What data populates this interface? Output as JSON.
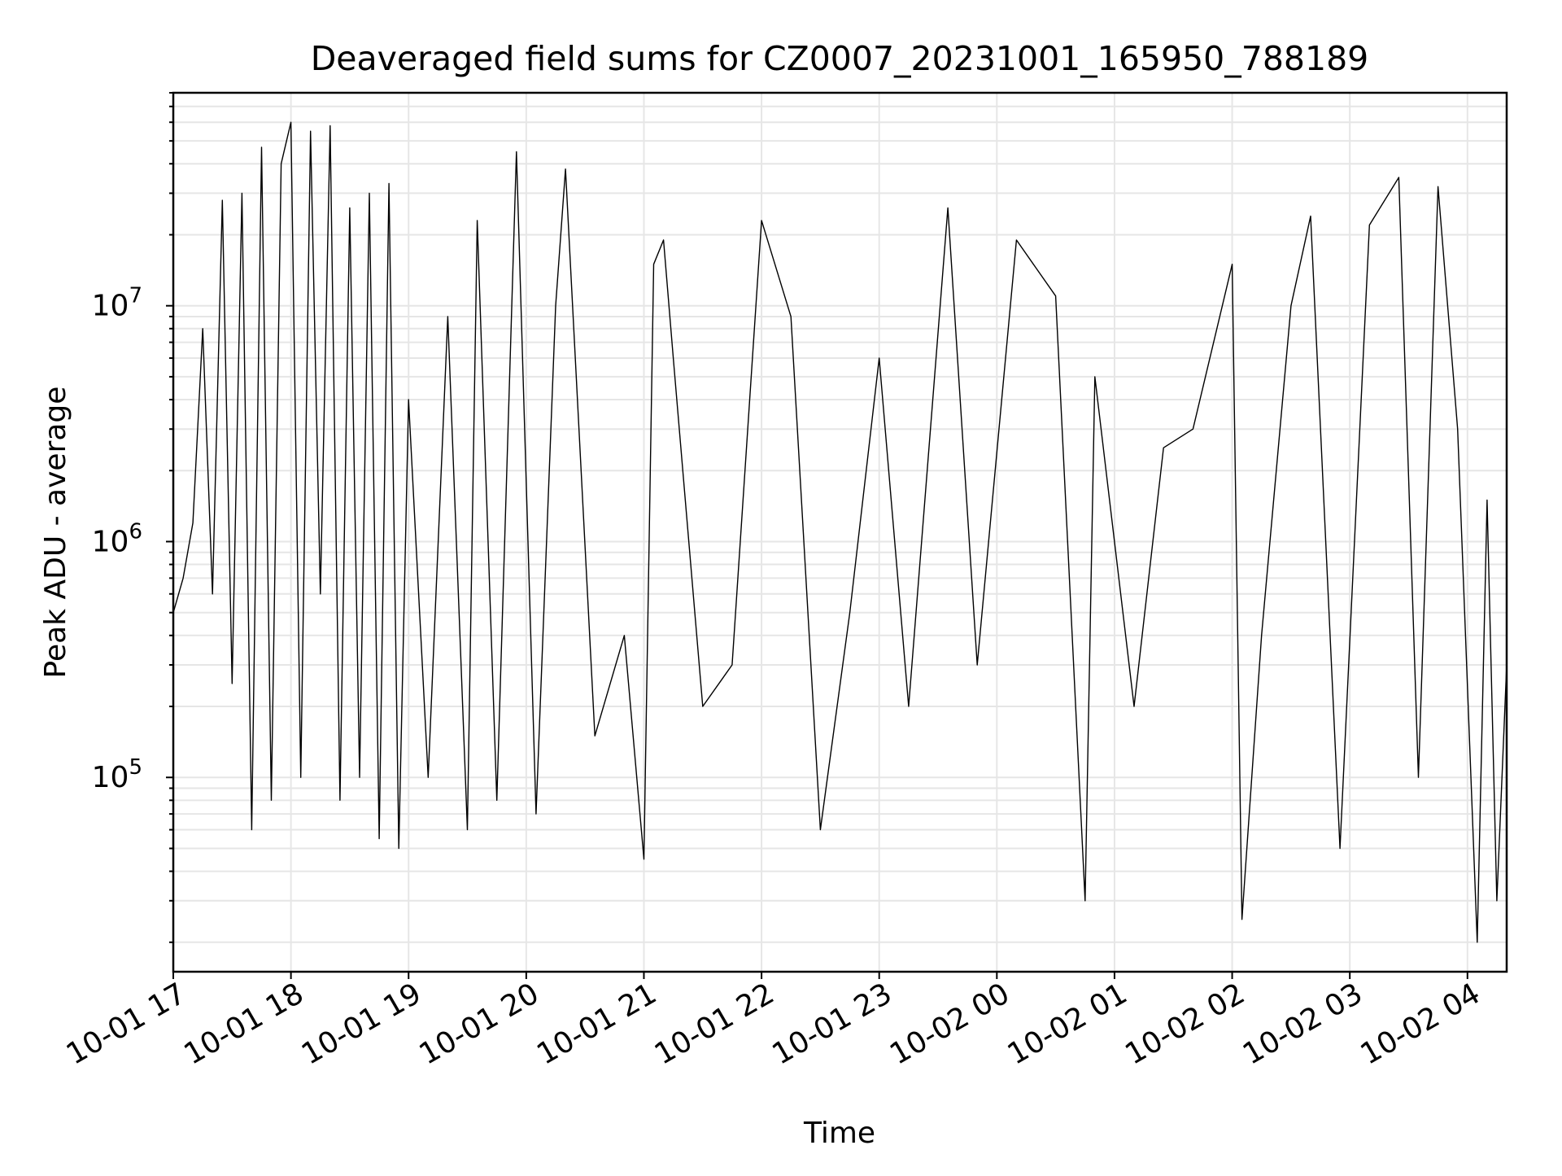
{
  "chart_data": {
    "type": "line",
    "title": "Deaveraged field sums for CZ0007_20231001_165950_788189",
    "xlabel": "Time",
    "ylabel": "Peak ADU - average",
    "yscale": "log",
    "xlim": [
      "2023-10-01 17:00",
      "2023-10-02 04:20"
    ],
    "ylim": [
      15000,
      80000000
    ],
    "grid": "on (major and minor)",
    "x_ticks": [
      {
        "value": "2023-10-01 17:00",
        "label": "10-01 17"
      },
      {
        "value": "2023-10-01 18:00",
        "label": "10-01 18"
      },
      {
        "value": "2023-10-01 19:00",
        "label": "10-01 19"
      },
      {
        "value": "2023-10-01 20:00",
        "label": "10-01 20"
      },
      {
        "value": "2023-10-01 21:00",
        "label": "10-01 21"
      },
      {
        "value": "2023-10-01 22:00",
        "label": "10-01 22"
      },
      {
        "value": "2023-10-01 23:00",
        "label": "10-01 23"
      },
      {
        "value": "2023-10-02 00:00",
        "label": "10-02 00"
      },
      {
        "value": "2023-10-02 01:00",
        "label": "10-02 01"
      },
      {
        "value": "2023-10-02 02:00",
        "label": "10-02 02"
      },
      {
        "value": "2023-10-02 03:00",
        "label": "10-02 03"
      },
      {
        "value": "2023-10-02 04:00",
        "label": "10-02 04"
      }
    ],
    "y_ticks": [
      {
        "value": 100000,
        "base": "10",
        "exp": "5"
      },
      {
        "value": 1000000,
        "base": "10",
        "exp": "6"
      },
      {
        "value": 10000000,
        "base": "10",
        "exp": "7"
      }
    ],
    "series": [
      {
        "color": "#000000",
        "points": [
          [
            "2023-10-01 17:00",
            500000
          ],
          [
            "2023-10-01 17:05",
            700000
          ],
          [
            "2023-10-01 17:10",
            1200000
          ],
          [
            "2023-10-01 17:15",
            8000000
          ],
          [
            "2023-10-01 17:20",
            600000
          ],
          [
            "2023-10-01 17:25",
            28000000
          ],
          [
            "2023-10-01 17:30",
            250000
          ],
          [
            "2023-10-01 17:35",
            30000000
          ],
          [
            "2023-10-01 17:40",
            60000
          ],
          [
            "2023-10-01 17:45",
            47000000
          ],
          [
            "2023-10-01 17:50",
            80000
          ],
          [
            "2023-10-01 17:55",
            40000000
          ],
          [
            "2023-10-01 18:00",
            60000000
          ],
          [
            "2023-10-01 18:05",
            100000
          ],
          [
            "2023-10-01 18:10",
            55000000
          ],
          [
            "2023-10-01 18:15",
            600000
          ],
          [
            "2023-10-01 18:20",
            58000000
          ],
          [
            "2023-10-01 18:25",
            80000
          ],
          [
            "2023-10-01 18:30",
            26000000
          ],
          [
            "2023-10-01 18:35",
            100000
          ],
          [
            "2023-10-01 18:40",
            30000000
          ],
          [
            "2023-10-01 18:45",
            55000
          ],
          [
            "2023-10-01 18:50",
            33000000
          ],
          [
            "2023-10-01 18:55",
            50000
          ],
          [
            "2023-10-01 19:00",
            4000000
          ],
          [
            "2023-10-01 19:10",
            100000
          ],
          [
            "2023-10-01 19:20",
            9000000
          ],
          [
            "2023-10-01 19:30",
            60000
          ],
          [
            "2023-10-01 19:35",
            23000000
          ],
          [
            "2023-10-01 19:45",
            80000
          ],
          [
            "2023-10-01 19:55",
            45000000
          ],
          [
            "2023-10-01 20:05",
            70000
          ],
          [
            "2023-10-01 20:15",
            10000000
          ],
          [
            "2023-10-01 20:20",
            38000000
          ],
          [
            "2023-10-01 20:35",
            150000
          ],
          [
            "2023-10-01 20:50",
            400000
          ],
          [
            "2023-10-01 21:00",
            45000
          ],
          [
            "2023-10-01 21:05",
            15000000
          ],
          [
            "2023-10-01 21:10",
            19000000
          ],
          [
            "2023-10-01 21:15",
            6000000
          ],
          [
            "2023-10-01 21:30",
            200000
          ],
          [
            "2023-10-01 21:45",
            300000
          ],
          [
            "2023-10-01 22:00",
            23000000
          ],
          [
            "2023-10-01 22:15",
            9000000
          ],
          [
            "2023-10-01 22:30",
            60000
          ],
          [
            "2023-10-01 22:45",
            500000
          ],
          [
            "2023-10-01 23:00",
            6000000
          ],
          [
            "2023-10-01 23:15",
            200000
          ],
          [
            "2023-10-01 23:35",
            26000000
          ],
          [
            "2023-10-01 23:50",
            300000
          ],
          [
            "2023-10-02 00:10",
            19000000
          ],
          [
            "2023-10-02 00:30",
            11000000
          ],
          [
            "2023-10-02 00:45",
            30000
          ],
          [
            "2023-10-02 00:50",
            5000000
          ],
          [
            "2023-10-02 01:10",
            200000
          ],
          [
            "2023-10-02 01:25",
            2500000
          ],
          [
            "2023-10-02 01:40",
            3000000
          ],
          [
            "2023-10-02 02:00",
            15000000
          ],
          [
            "2023-10-02 02:05",
            25000
          ],
          [
            "2023-10-02 02:15",
            400000
          ],
          [
            "2023-10-02 02:30",
            10000000
          ],
          [
            "2023-10-02 02:40",
            24000000
          ],
          [
            "2023-10-02 02:55",
            50000
          ],
          [
            "2023-10-02 03:10",
            22000000
          ],
          [
            "2023-10-02 03:25",
            35000000
          ],
          [
            "2023-10-02 03:35",
            100000
          ],
          [
            "2023-10-02 03:45",
            32000000
          ],
          [
            "2023-10-02 03:55",
            3000000
          ],
          [
            "2023-10-02 04:05",
            20000
          ],
          [
            "2023-10-02 04:10",
            1500000
          ],
          [
            "2023-10-02 04:15",
            30000
          ],
          [
            "2023-10-02 04:20",
            300000
          ]
        ]
      }
    ]
  }
}
